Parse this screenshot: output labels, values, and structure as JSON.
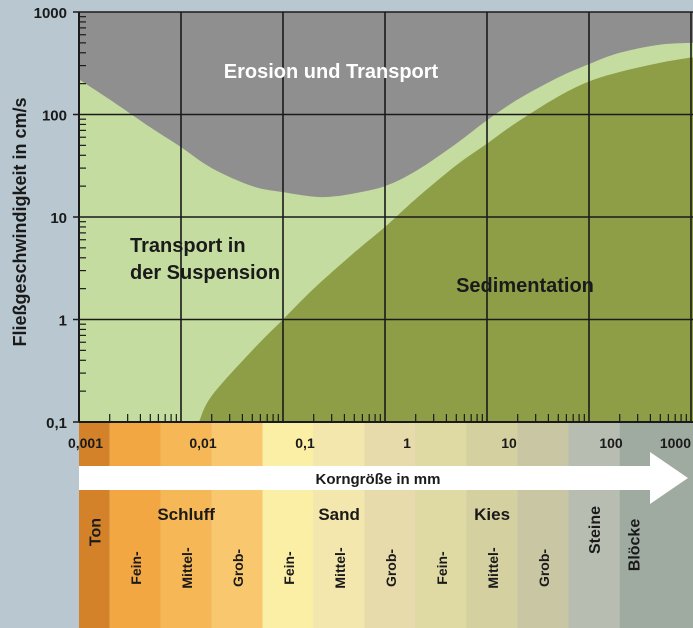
{
  "chart_data": {
    "type": "area",
    "title": "",
    "ylabel": "Fließgeschwindigkeit in cm/s",
    "xlabel": "Korngröße in mm",
    "x_scale": "log",
    "y_scale": "log",
    "xlim": [
      0.001,
      1000
    ],
    "ylim": [
      0.1,
      1000
    ],
    "x_ticks": [
      "0,001",
      "0,01",
      "0,1",
      "1",
      "10",
      "100",
      "1000"
    ],
    "x_tick_values": [
      0.001,
      0.01,
      0.1,
      1,
      10,
      100,
      1000
    ],
    "y_ticks": [
      "0,1",
      "1",
      "10",
      "100",
      "1000"
    ],
    "y_tick_values": [
      0.1,
      1,
      10,
      100,
      1000
    ],
    "grid": true,
    "regions": {
      "erosion": {
        "label": "Erosion und Transport",
        "color": "#8f8f8f"
      },
      "suspension": {
        "label_line1": "Transport in",
        "label_line2": "der Suspension",
        "color": "#c5dca0"
      },
      "sedimentation": {
        "label": "Sedimentation",
        "color": "#8e9e47"
      }
    },
    "series": [
      {
        "name": "Erosion und Transport",
        "points": [
          [
            0.001,
            220
          ],
          [
            0.002,
            140
          ],
          [
            0.005,
            75
          ],
          [
            0.01,
            48
          ],
          [
            0.02,
            30
          ],
          [
            0.05,
            20
          ],
          [
            0.1,
            17.5
          ],
          [
            0.2,
            15.8
          ],
          [
            0.3,
            15.8
          ],
          [
            0.5,
            17
          ],
          [
            1,
            20
          ],
          [
            2,
            28
          ],
          [
            5,
            52
          ],
          [
            10,
            88
          ],
          [
            20,
            140
          ],
          [
            50,
            230
          ],
          [
            100,
            310
          ],
          [
            200,
            400
          ],
          [
            500,
            480
          ],
          [
            1000,
            500
          ]
        ]
      },
      {
        "name": "Sedimentation",
        "points": [
          [
            0.015,
            0.1
          ],
          [
            0.02,
            0.18
          ],
          [
            0.05,
            0.5
          ],
          [
            0.1,
            1
          ],
          [
            0.2,
            2
          ],
          [
            0.5,
            4.5
          ],
          [
            1,
            8
          ],
          [
            2,
            15
          ],
          [
            5,
            32
          ],
          [
            10,
            52
          ],
          [
            20,
            85
          ],
          [
            50,
            150
          ],
          [
            100,
            210
          ],
          [
            200,
            260
          ],
          [
            500,
            320
          ],
          [
            1000,
            360
          ]
        ]
      }
    ]
  },
  "arrow": {
    "label": "Korngröße in mm"
  },
  "classes": [
    {
      "name": "Ton"
    },
    {
      "name": "Schluff",
      "subs": [
        "Fein-",
        "Mittel-",
        "Grob-"
      ]
    },
    {
      "name": "Sand",
      "subs": [
        "Fein-",
        "Mittel-",
        "Grob-"
      ]
    },
    {
      "name": "Kies",
      "subs": [
        "Fein-",
        "Mittel-",
        "Grob-"
      ]
    },
    {
      "name": "Steine"
    },
    {
      "name": "Blöcke"
    }
  ],
  "colors": {
    "background": "#b9c8d0",
    "erosion": "#8f8f8f",
    "suspension": "#c5dca0",
    "sedimentation": "#8e9e47",
    "ton": "#d4822a",
    "schluff": [
      "#f2a743",
      "#f6b757",
      "#f9c86e"
    ],
    "sand": [
      "#fbefa6",
      "#f3e7ae",
      "#e7dbab"
    ],
    "kies": [
      "#dfd9a3",
      "#d4d0a0",
      "#c9c6a3"
    ],
    "steine": "#b8bdb1",
    "bloecke": "#9faaa0"
  }
}
